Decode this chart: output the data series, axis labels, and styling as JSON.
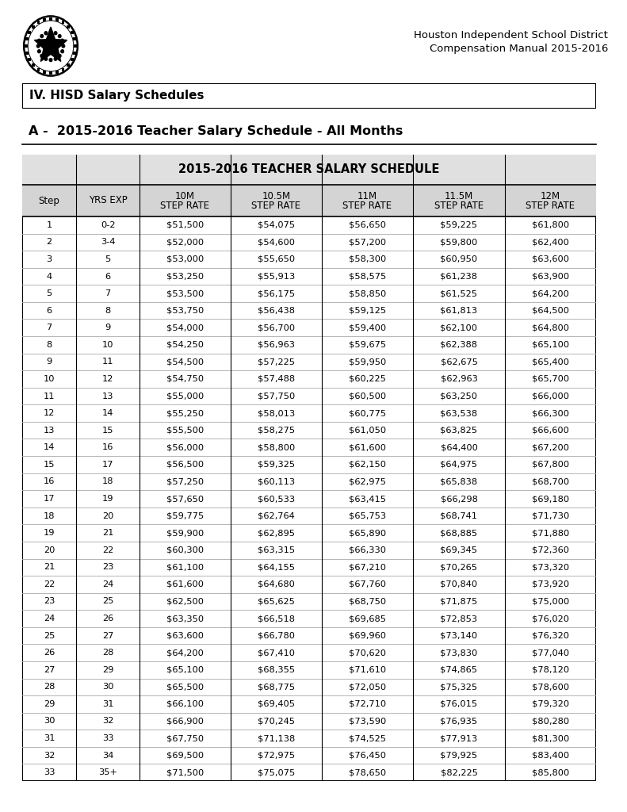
{
  "page_title_line1": "Houston Independent School District",
  "page_title_line2": "Compensation Manual 2015-2016",
  "section_header": "IV. HISD Salary Schedules",
  "subtitle": "A -  2015-2016 Teacher Salary Schedule - All Months",
  "table_title": "2015-2016 TEACHER SALARY SCHEDULE",
  "col_headers_line1": [
    "Step",
    "YRS EXP",
    "10M",
    "10.5M",
    "11M",
    "11.5M",
    "12M"
  ],
  "col_headers_line2": [
    "",
    "",
    "STEP RATE",
    "STEP RATE",
    "STEP RATE",
    "STEP RATE",
    "STEP RATE"
  ],
  "rows": [
    [
      "1",
      "0-2",
      "$51,500",
      "$54,075",
      "$56,650",
      "$59,225",
      "$61,800"
    ],
    [
      "2",
      "3-4",
      "$52,000",
      "$54,600",
      "$57,200",
      "$59,800",
      "$62,400"
    ],
    [
      "3",
      "5",
      "$53,000",
      "$55,650",
      "$58,300",
      "$60,950",
      "$63,600"
    ],
    [
      "4",
      "6",
      "$53,250",
      "$55,913",
      "$58,575",
      "$61,238",
      "$63,900"
    ],
    [
      "5",
      "7",
      "$53,500",
      "$56,175",
      "$58,850",
      "$61,525",
      "$64,200"
    ],
    [
      "6",
      "8",
      "$53,750",
      "$56,438",
      "$59,125",
      "$61,813",
      "$64,500"
    ],
    [
      "7",
      "9",
      "$54,000",
      "$56,700",
      "$59,400",
      "$62,100",
      "$64,800"
    ],
    [
      "8",
      "10",
      "$54,250",
      "$56,963",
      "$59,675",
      "$62,388",
      "$65,100"
    ],
    [
      "9",
      "11",
      "$54,500",
      "$57,225",
      "$59,950",
      "$62,675",
      "$65,400"
    ],
    [
      "10",
      "12",
      "$54,750",
      "$57,488",
      "$60,225",
      "$62,963",
      "$65,700"
    ],
    [
      "11",
      "13",
      "$55,000",
      "$57,750",
      "$60,500",
      "$63,250",
      "$66,000"
    ],
    [
      "12",
      "14",
      "$55,250",
      "$58,013",
      "$60,775",
      "$63,538",
      "$66,300"
    ],
    [
      "13",
      "15",
      "$55,500",
      "$58,275",
      "$61,050",
      "$63,825",
      "$66,600"
    ],
    [
      "14",
      "16",
      "$56,000",
      "$58,800",
      "$61,600",
      "$64,400",
      "$67,200"
    ],
    [
      "15",
      "17",
      "$56,500",
      "$59,325",
      "$62,150",
      "$64,975",
      "$67,800"
    ],
    [
      "16",
      "18",
      "$57,250",
      "$60,113",
      "$62,975",
      "$65,838",
      "$68,700"
    ],
    [
      "17",
      "19",
      "$57,650",
      "$60,533",
      "$63,415",
      "$66,298",
      "$69,180"
    ],
    [
      "18",
      "20",
      "$59,775",
      "$62,764",
      "$65,753",
      "$68,741",
      "$71,730"
    ],
    [
      "19",
      "21",
      "$59,900",
      "$62,895",
      "$65,890",
      "$68,885",
      "$71,880"
    ],
    [
      "20",
      "22",
      "$60,300",
      "$63,315",
      "$66,330",
      "$69,345",
      "$72,360"
    ],
    [
      "21",
      "23",
      "$61,100",
      "$64,155",
      "$67,210",
      "$70,265",
      "$73,320"
    ],
    [
      "22",
      "24",
      "$61,600",
      "$64,680",
      "$67,760",
      "$70,840",
      "$73,920"
    ],
    [
      "23",
      "25",
      "$62,500",
      "$65,625",
      "$68,750",
      "$71,875",
      "$75,000"
    ],
    [
      "24",
      "26",
      "$63,350",
      "$66,518",
      "$69,685",
      "$72,853",
      "$76,020"
    ],
    [
      "25",
      "27",
      "$63,600",
      "$66,780",
      "$69,960",
      "$73,140",
      "$76,320"
    ],
    [
      "26",
      "28",
      "$64,200",
      "$67,410",
      "$70,620",
      "$73,830",
      "$77,040"
    ],
    [
      "27",
      "29",
      "$65,100",
      "$68,355",
      "$71,610",
      "$74,865",
      "$78,120"
    ],
    [
      "28",
      "30",
      "$65,500",
      "$68,775",
      "$72,050",
      "$75,325",
      "$78,600"
    ],
    [
      "29",
      "31",
      "$66,100",
      "$69,405",
      "$72,710",
      "$76,015",
      "$79,320"
    ],
    [
      "30",
      "32",
      "$66,900",
      "$70,245",
      "$73,590",
      "$76,935",
      "$80,280"
    ],
    [
      "31",
      "33",
      "$67,750",
      "$71,138",
      "$74,525",
      "$77,913",
      "$81,300"
    ],
    [
      "32",
      "34",
      "$69,500",
      "$72,975",
      "$76,450",
      "$79,925",
      "$83,400"
    ],
    [
      "33",
      "35+",
      "$71,500",
      "$75,075",
      "$78,650",
      "$82,225",
      "$85,800"
    ]
  ],
  "bg_color": "#ffffff",
  "header_bg": "#d4d4d4",
  "title_bg": "#e0e0e0",
  "row_line_color": "#aaaaaa",
  "font_size_data": 8.2,
  "font_size_col_header": 8.5,
  "font_size_table_title": 10.5,
  "font_size_page_header": 9.5,
  "font_size_section": 11,
  "font_size_subtitle": 11.5
}
